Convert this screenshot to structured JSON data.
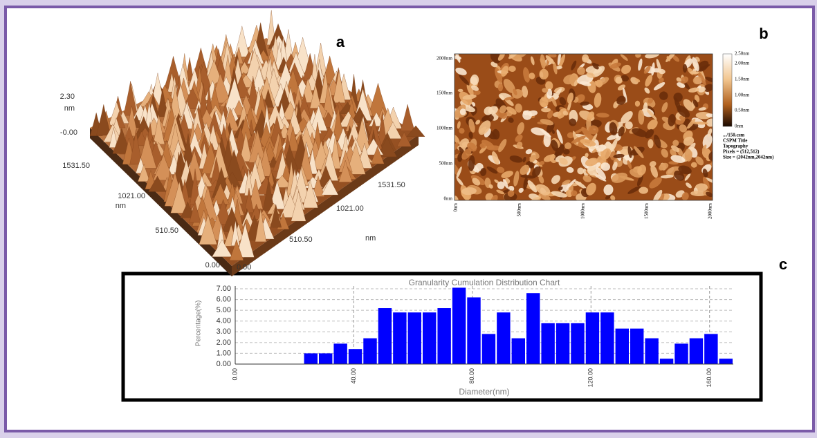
{
  "panel_a": {
    "label": "a",
    "axis_labels": [
      "2.30",
      "nm",
      "-0.00",
      "1531.50",
      "1021.00",
      "nm",
      "510.50",
      "0.00",
      "0.00",
      "510.50",
      "1021.00",
      "nm",
      "1531.50"
    ]
  },
  "panel_b": {
    "label": "b",
    "y_labels": [
      "2000nm",
      "1500nm",
      "1000nm",
      "500nm",
      "0nm"
    ],
    "x_labels": [
      "0nm",
      "500nm",
      "1000nm",
      "1500nm",
      "2000nm"
    ],
    "colorbar_labels": [
      "2.50nm",
      "2.00nm",
      "1.50nm",
      "1.00nm",
      "0.50nm",
      "0nm"
    ],
    "info": [
      ".../150.csm",
      "CSPM Title",
      "Topography",
      "Pixels = (512,512)",
      "Size = (2042nm,2042nm)"
    ]
  },
  "panel_c": {
    "label": "c"
  },
  "chart_data": {
    "type": "histogram",
    "title": "Granularity Cumulation Distribution Chart",
    "x_label": "Diameter(nm)",
    "y_label": "Percentage(%)",
    "color": "#0000ff",
    "grid": true,
    "bins": [
      23,
      28,
      33,
      38,
      43,
      48,
      53,
      58,
      63,
      68,
      73,
      78,
      83,
      88,
      93,
      98,
      103,
      108,
      113,
      118,
      123,
      128,
      133,
      138,
      143,
      148,
      153,
      158,
      163,
      168
    ],
    "values": [
      1.0,
      1.0,
      1.9,
      1.4,
      2.4,
      5.2,
      4.8,
      4.8,
      4.8,
      5.2,
      7.1,
      6.2,
      2.8,
      4.8,
      2.4,
      6.6,
      3.8,
      3.8,
      3.8,
      4.8,
      4.8,
      3.3,
      3.3,
      2.4,
      0.5,
      1.9,
      2.4,
      2.8,
      0.5
    ],
    "xlim": [
      0,
      168
    ],
    "ylim": [
      0,
      7
    ],
    "xticks": [
      {
        "value": 0,
        "label": "0.00"
      },
      {
        "value": 40,
        "label": "40.00"
      },
      {
        "value": 80,
        "label": "80.00"
      },
      {
        "value": 120,
        "label": "120.00"
      },
      {
        "value": 160,
        "label": "160.00"
      }
    ],
    "yticks": [
      {
        "value": 0,
        "label": "0.00"
      },
      {
        "value": 1,
        "label": "1.00"
      },
      {
        "value": 2,
        "label": "2.00"
      },
      {
        "value": 3,
        "label": "3.00"
      },
      {
        "value": 4,
        "label": "4.00"
      },
      {
        "value": 5,
        "label": "5.00"
      },
      {
        "value": 6,
        "label": "6.00"
      },
      {
        "value": 7,
        "label": "7.00"
      }
    ]
  }
}
